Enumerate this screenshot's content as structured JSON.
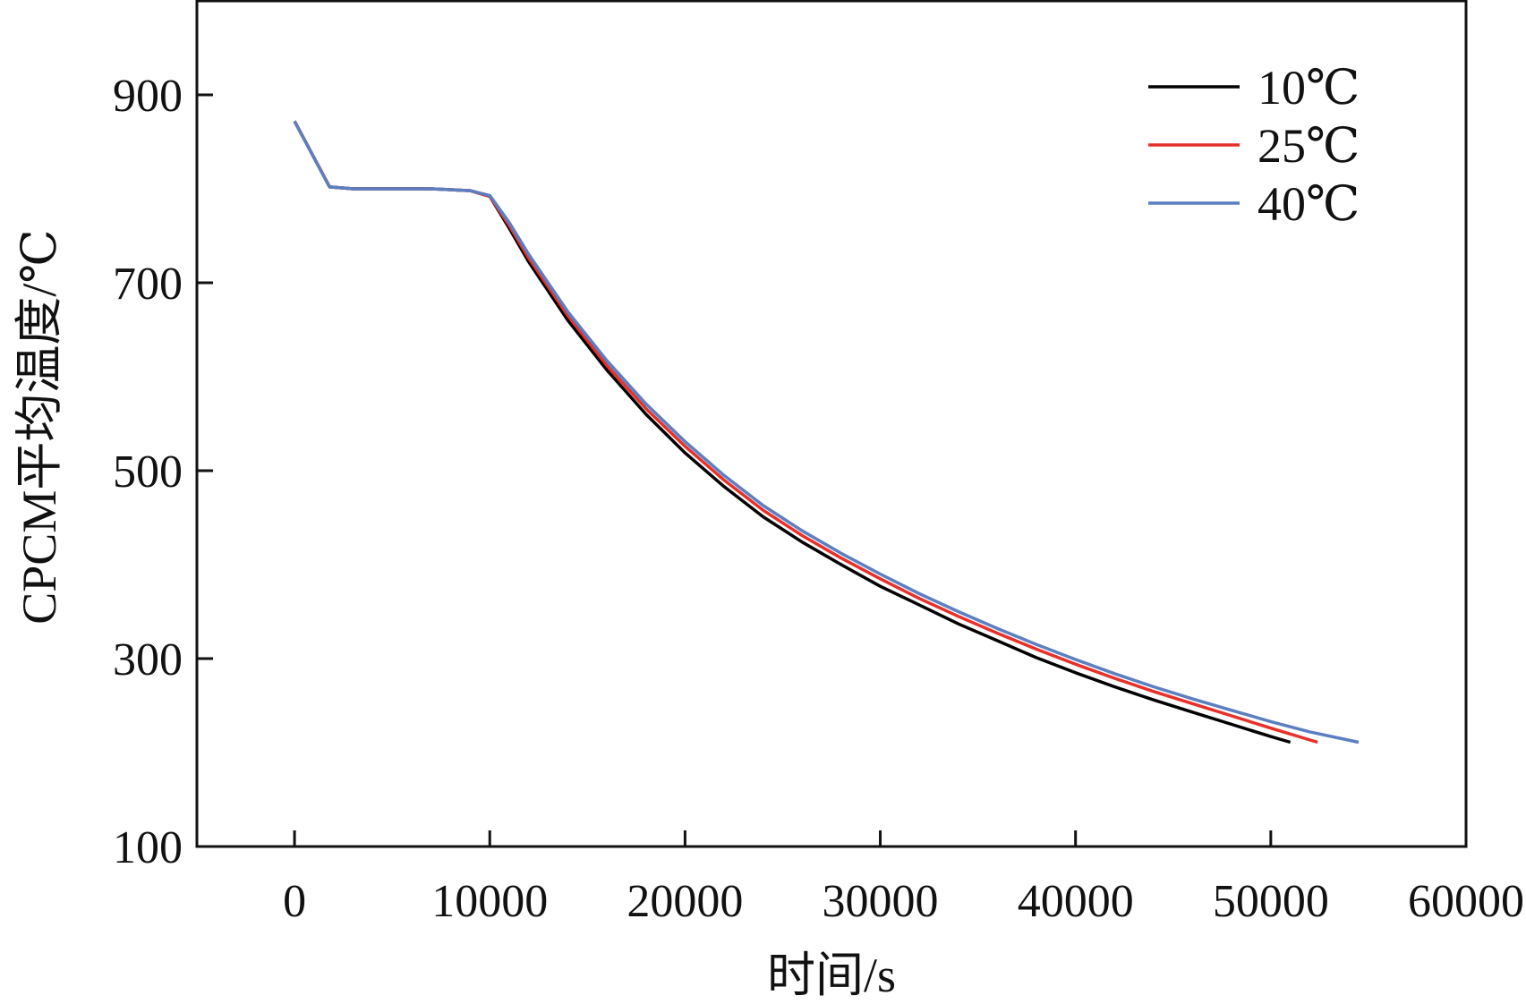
{
  "chart_data": {
    "type": "line",
    "xlabel": "时间/s",
    "ylabel": "CPCM平均温度/℃",
    "xlim": [
      -5000,
      60000
    ],
    "ylim": [
      100,
      1000
    ],
    "xticks": [
      0,
      10000,
      20000,
      30000,
      40000,
      50000,
      60000
    ],
    "xtick_labels": [
      "0",
      "10000",
      "20000",
      "30000",
      "40000",
      "50000",
      "60000"
    ],
    "yticks": [
      100,
      300,
      500,
      700,
      900
    ],
    "ytick_labels": [
      "100",
      "300",
      "500",
      "700",
      "900"
    ],
    "grid": false,
    "legend_position": "top-right",
    "series": [
      {
        "name": "10℃",
        "color": "#000000",
        "x": [
          0,
          1800,
          3000,
          5000,
          7000,
          9000,
          10000,
          11000,
          12000,
          14000,
          16000,
          18000,
          20000,
          22000,
          24000,
          26000,
          28000,
          30000,
          32000,
          34000,
          36000,
          38000,
          40000,
          42000,
          44000,
          46000,
          48000,
          50000,
          51000
        ],
        "y": [
          872,
          802,
          800,
          800,
          800,
          798,
          792,
          758,
          722,
          660,
          607,
          560,
          519,
          483,
          451,
          424,
          400,
          377,
          357,
          337,
          319,
          301,
          285,
          270,
          256,
          243,
          230,
          217,
          211
        ]
      },
      {
        "name": "25℃",
        "color": "#e8302a",
        "x": [
          0,
          1800,
          3000,
          5000,
          7000,
          9000,
          10000,
          11000,
          12000,
          14000,
          16000,
          18000,
          20000,
          22000,
          24000,
          26000,
          28000,
          30000,
          32000,
          34000,
          36000,
          38000,
          40000,
          42000,
          44000,
          46000,
          48000,
          50000,
          52400
        ],
        "y": [
          872,
          802,
          800,
          800,
          800,
          798,
          792,
          761,
          726,
          665,
          612,
          566,
          526,
          490,
          458,
          431,
          407,
          385,
          364,
          345,
          327,
          310,
          294,
          279,
          265,
          252,
          239,
          226,
          211
        ]
      },
      {
        "name": "40℃",
        "color": "#5b7fc0",
        "x": [
          0,
          1800,
          3000,
          5000,
          7000,
          9000,
          10000,
          11000,
          12000,
          14000,
          16000,
          18000,
          20000,
          22000,
          24000,
          26000,
          28000,
          30000,
          32000,
          34000,
          36000,
          38000,
          40000,
          42000,
          44000,
          46000,
          48000,
          50000,
          52000,
          54500
        ],
        "y": [
          872,
          802,
          800,
          800,
          800,
          798,
          793,
          764,
          730,
          669,
          617,
          571,
          531,
          495,
          463,
          436,
          412,
          390,
          369,
          350,
          332,
          315,
          299,
          284,
          270,
          257,
          245,
          233,
          222,
          211
        ]
      }
    ]
  }
}
